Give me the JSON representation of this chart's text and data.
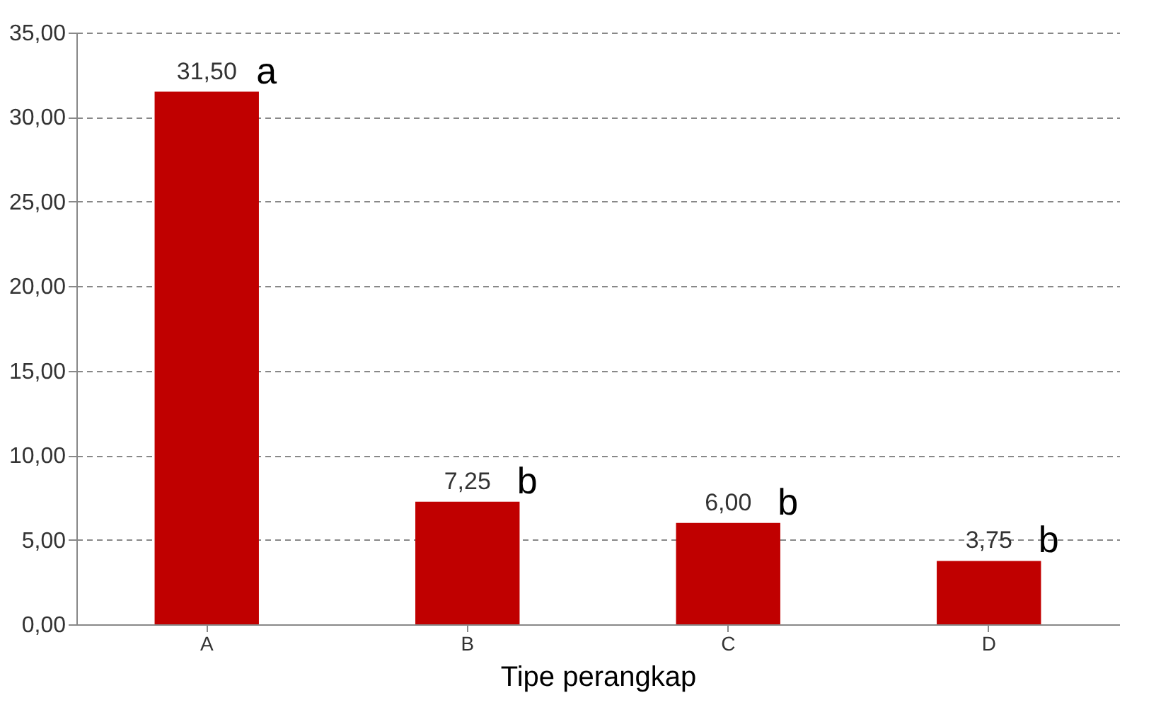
{
  "chart_data": {
    "type": "bar",
    "xlabel": "Tipe perangkap",
    "categories": [
      "A",
      "B",
      "C",
      "D"
    ],
    "values": [
      31.5,
      7.25,
      6.0,
      3.75
    ],
    "value_labels": [
      "31,50",
      "7,25",
      "6,00",
      "3,75"
    ],
    "color": "#c00000",
    "ylim": [
      0,
      35
    ],
    "yticks": [
      {
        "value": 0,
        "label": "0,00"
      },
      {
        "value": 5,
        "label": "5,00"
      },
      {
        "value": 10,
        "label": "10,00"
      },
      {
        "value": 15,
        "label": "15,00"
      },
      {
        "value": 20,
        "label": "20,00"
      },
      {
        "value": 25,
        "label": "25,00"
      },
      {
        "value": 30,
        "label": "30,00"
      },
      {
        "value": 35,
        "label": "35,00"
      }
    ],
    "grid": "y",
    "annotations": [
      {
        "text": "a",
        "x": "A",
        "y": 31.5
      },
      {
        "text": "b",
        "x": "B",
        "y": 7.25
      },
      {
        "text": "b",
        "x": "C",
        "y": 6.0
      },
      {
        "text": "b",
        "x": "D",
        "y": 3.75
      }
    ]
  }
}
